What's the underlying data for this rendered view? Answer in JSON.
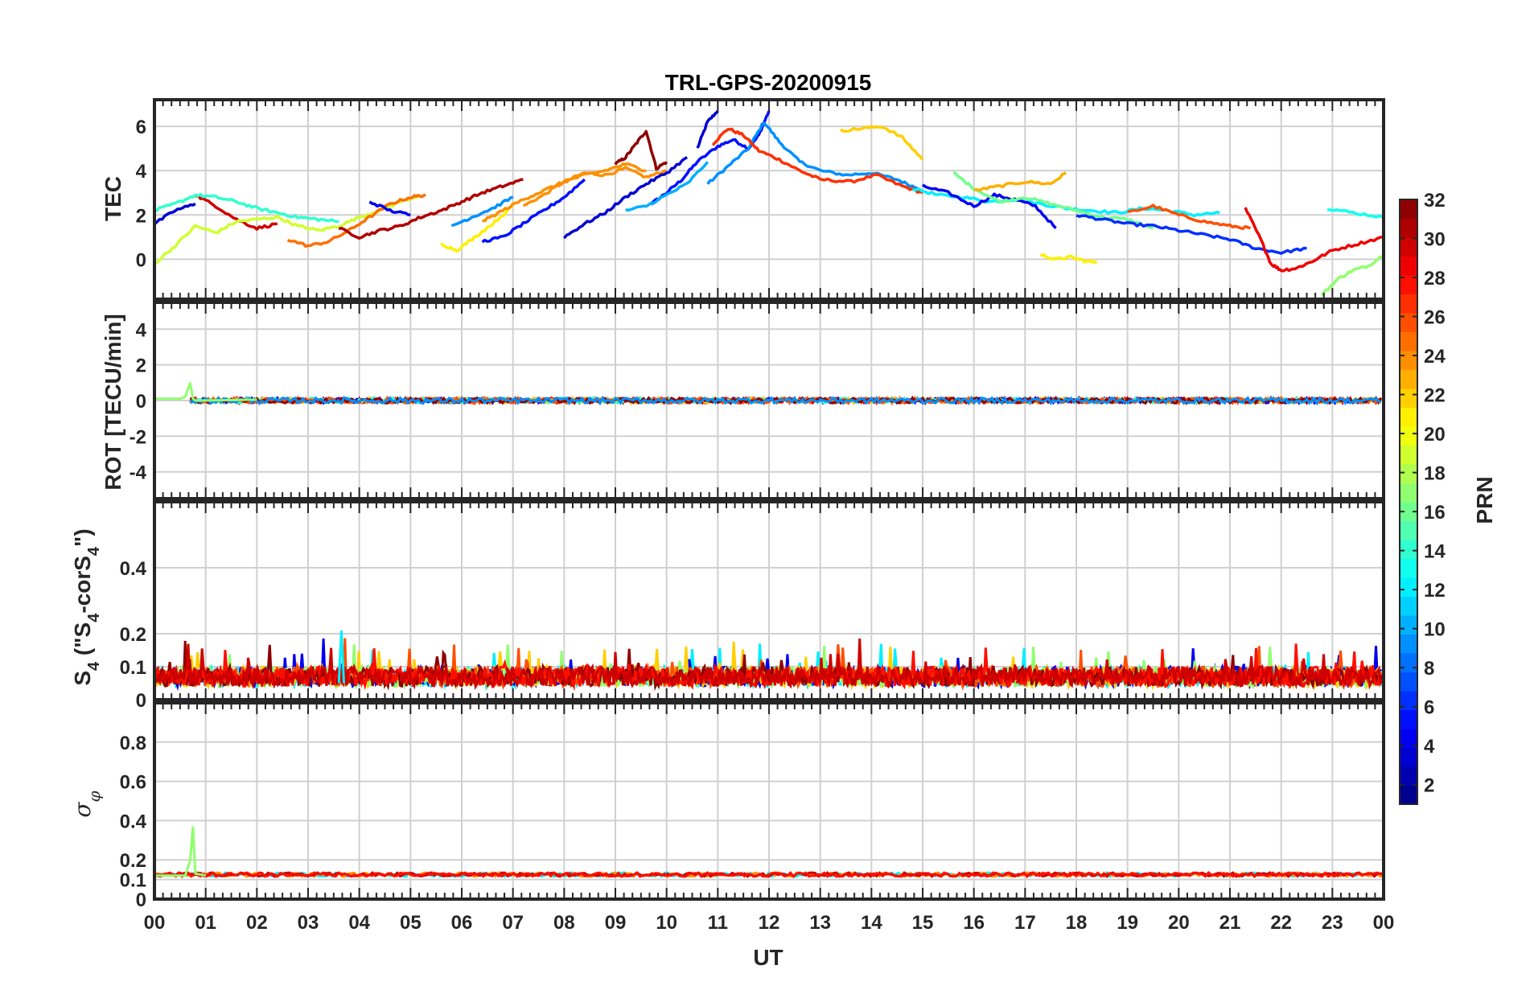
{
  "chart_data": [
    {
      "type": "line",
      "panel": "tec",
      "title": "TRL-GPS-20200915",
      "ylabel": "TEC",
      "xlim": [
        0,
        24
      ],
      "ylim": [
        -1.8,
        7.2
      ],
      "yticks": [
        0,
        2,
        4,
        6
      ],
      "series": [
        {
          "prn": 3,
          "x": [
            10.6,
            10.8,
            11.0
          ],
          "y": [
            5.0,
            6.2,
            6.7
          ]
        },
        {
          "prn": 5,
          "x": [
            9.7,
            10.0,
            10.3,
            10.6,
            11.0,
            11.3,
            11.6,
            11.8,
            12.0
          ],
          "y": [
            2.5,
            3.0,
            3.6,
            4.4,
            5.1,
            5.4,
            5.0,
            5.6,
            6.7
          ]
        },
        {
          "prn": 9,
          "x": [
            10.8,
            11.2,
            11.6,
            11.9,
            12.2,
            12.6,
            13.0,
            13.5,
            14.0,
            14.5,
            14.9
          ],
          "y": [
            3.4,
            4.2,
            5.0,
            6.2,
            5.3,
            4.4,
            4.0,
            3.8,
            3.9,
            3.6,
            3.2
          ]
        },
        {
          "prn": 27,
          "x": [
            10.9,
            11.2,
            11.5,
            11.8,
            12.2,
            12.6,
            13.0,
            13.6,
            14.1,
            14.6,
            15.0
          ],
          "y": [
            5.2,
            5.9,
            5.6,
            4.9,
            4.5,
            4.0,
            3.6,
            3.5,
            3.8,
            3.3,
            3.0
          ]
        },
        {
          "prn": 32,
          "x": [
            9.0,
            9.2,
            9.4,
            9.6,
            9.8,
            10.0
          ],
          "y": [
            4.3,
            4.6,
            5.2,
            5.8,
            4.1,
            4.4
          ]
        },
        {
          "prn": 24,
          "x": [
            7.2,
            7.6,
            8.0,
            8.4,
            8.8,
            9.2,
            9.6,
            10.0
          ],
          "y": [
            2.4,
            2.9,
            3.5,
            3.9,
            3.8,
            4.1,
            3.7,
            4.0
          ]
        },
        {
          "prn": 12,
          "x": [
            14.8,
            15.3,
            15.8,
            16.3,
            16.8,
            17.3,
            17.8,
            18.3,
            18.8,
            19.3,
            19.8,
            20.3,
            20.8
          ],
          "y": [
            3.2,
            2.9,
            2.8,
            2.6,
            2.7,
            2.5,
            2.3,
            2.2,
            2.1,
            2.3,
            2.2,
            2.0,
            2.1
          ]
        },
        {
          "prn": 4,
          "x": [
            15.0,
            15.5,
            16.0,
            16.4,
            16.8,
            17.2,
            17.6
          ],
          "y": [
            3.3,
            3.0,
            2.4,
            2.9,
            2.7,
            2.4,
            1.4
          ]
        },
        {
          "prn": 16,
          "x": [
            15.6,
            16.0,
            16.5,
            17.0,
            17.5,
            18.0,
            18.5,
            19.0,
            19.5
          ],
          "y": [
            3.9,
            3.2,
            2.6,
            2.8,
            2.5,
            2.2,
            1.9,
            1.8,
            1.4
          ]
        },
        {
          "prn": 23,
          "x": [
            16.0,
            16.5,
            17.0,
            17.5,
            17.8
          ],
          "y": [
            3.1,
            3.3,
            3.5,
            3.4,
            3.9
          ]
        },
        {
          "prn": 6,
          "x": [
            18.0,
            18.5,
            19.0,
            19.5,
            20.0,
            20.5,
            21.0,
            21.5,
            22.0,
            22.5
          ],
          "y": [
            2.0,
            1.8,
            1.6,
            1.5,
            1.3,
            1.1,
            0.9,
            0.5,
            0.3,
            0.5
          ]
        },
        {
          "prn": 26,
          "x": [
            19.0,
            19.5,
            20.0,
            20.5,
            21.0,
            21.4
          ],
          "y": [
            2.1,
            2.4,
            2.0,
            1.7,
            1.5,
            1.4
          ]
        },
        {
          "prn": 29,
          "x": [
            21.3,
            21.6,
            21.8,
            22.0,
            22.3,
            22.6,
            23.0,
            23.5,
            24.0
          ],
          "y": [
            2.3,
            0.9,
            -0.2,
            -0.5,
            -0.4,
            -0.1,
            0.4,
            0.7,
            1.0
          ]
        },
        {
          "prn": 17,
          "x": [
            22.8,
            23.1,
            23.4,
            23.7,
            24.0
          ],
          "y": [
            -1.6,
            -0.9,
            -0.5,
            -0.3,
            0.2
          ]
        },
        {
          "prn": 13,
          "x": [
            22.9,
            23.4,
            24.0
          ],
          "y": [
            2.3,
            2.1,
            1.9
          ]
        },
        {
          "prn": 22,
          "x": [
            13.4,
            13.8,
            14.2,
            14.6,
            15.0
          ],
          "y": [
            5.8,
            5.9,
            6.0,
            5.5,
            4.5
          ]
        },
        {
          "prn": 21,
          "x": [
            17.3,
            17.6,
            17.9,
            18.2,
            18.4
          ],
          "y": [
            0.2,
            0.0,
            0.1,
            -0.1,
            -0.1
          ]
        },
        {
          "prn": 30,
          "x": [
            0.8,
            1.2,
            1.6,
            2.0,
            2.4
          ],
          "y": [
            2.9,
            2.4,
            1.8,
            1.4,
            1.6
          ]
        },
        {
          "prn": 14,
          "x": [
            0.0,
            0.4,
            0.8,
            1.2,
            1.6,
            2.0,
            2.4,
            2.8,
            3.2,
            3.6
          ],
          "y": [
            2.2,
            2.5,
            2.9,
            2.8,
            2.6,
            2.3,
            2.1,
            1.9,
            1.8,
            1.7
          ]
        },
        {
          "prn": 19,
          "x": [
            0.0,
            0.4,
            0.8,
            1.2,
            1.6,
            2.0,
            2.4,
            2.8,
            3.2,
            3.6,
            4.0,
            4.4,
            4.8,
            5.2
          ],
          "y": [
            -0.2,
            0.6,
            1.5,
            1.2,
            1.7,
            1.8,
            1.9,
            1.5,
            1.3,
            1.5,
            1.9,
            2.2,
            2.6,
            2.9
          ]
        },
        {
          "prn": 3,
          "x": [
            0.0,
            0.4,
            0.8
          ],
          "y": [
            1.6,
            2.2,
            2.5
          ]
        },
        {
          "prn": 25,
          "x": [
            2.6,
            3.0,
            3.4,
            3.8,
            4.2,
            4.6,
            5.0,
            5.3
          ],
          "y": [
            0.9,
            0.6,
            0.8,
            1.3,
            1.9,
            2.5,
            2.8,
            2.9
          ]
        },
        {
          "prn": 31,
          "x": [
            3.6,
            4.0,
            4.4,
            4.8,
            5.2,
            5.6,
            6.0,
            6.4,
            6.8,
            7.2
          ],
          "y": [
            1.4,
            1.0,
            1.3,
            1.5,
            1.9,
            2.2,
            2.6,
            3.0,
            3.3,
            3.6
          ]
        },
        {
          "prn": 4,
          "x": [
            4.2,
            4.6,
            5.0
          ],
          "y": [
            2.6,
            2.2,
            2.0
          ]
        },
        {
          "prn": 21,
          "x": [
            5.6,
            5.9,
            6.2,
            6.6,
            7.0
          ],
          "y": [
            0.7,
            0.4,
            0.9,
            1.6,
            2.4
          ]
        },
        {
          "prn": 9,
          "x": [
            5.8,
            6.2,
            6.6,
            7.0
          ],
          "y": [
            1.5,
            1.9,
            2.3,
            2.8
          ]
        },
        {
          "prn": 5,
          "x": [
            6.4,
            6.8,
            7.2,
            7.6,
            8.0,
            8.4
          ],
          "y": [
            0.8,
            1.0,
            1.6,
            2.2,
            2.8,
            3.6
          ]
        },
        {
          "prn": 3,
          "x": [
            8.0,
            8.4,
            8.8,
            9.2,
            9.6,
            10.0,
            10.4
          ],
          "y": [
            1.0,
            1.6,
            2.1,
            2.8,
            3.4,
            3.9,
            4.6
          ]
        },
        {
          "prn": 10,
          "x": [
            9.2,
            9.6,
            10.0,
            10.4,
            10.8
          ],
          "y": [
            2.2,
            2.4,
            2.9,
            3.4,
            4.4
          ]
        },
        {
          "prn": 24,
          "x": [
            6.4,
            6.8,
            7.2,
            7.6,
            8.0,
            8.4,
            8.8,
            9.2,
            9.6
          ],
          "y": [
            1.7,
            2.2,
            2.7,
            3.1,
            3.5,
            3.8,
            4.0,
            4.3,
            4.0
          ]
        }
      ]
    },
    {
      "type": "line",
      "panel": "rot",
      "ylabel": "ROT [TECU/min]",
      "xlim": [
        0,
        24
      ],
      "ylim": [
        -5.5,
        5.5
      ],
      "yticks": [
        -4,
        -2,
        0,
        2,
        4
      ],
      "series": [
        {
          "prn": 17,
          "x": [
            0.0,
            0.5,
            0.6,
            0.7,
            0.75,
            0.8,
            1.0,
            2.0
          ],
          "y": [
            0.1,
            0.1,
            0.2,
            1.0,
            0.1,
            0.0,
            0.0,
            0.05
          ]
        },
        {
          "prn": 30,
          "x": [
            0.7,
            2.0,
            4.0,
            6.0,
            8.0,
            10.0,
            12.0,
            14.0,
            16.0,
            18.0,
            20.0,
            22.0,
            24.0
          ],
          "y": [
            0.0,
            0.05,
            0.0,
            0.05,
            0.1,
            0.1,
            -0.1,
            0.0,
            0.05,
            0.0,
            0.0,
            0.05,
            0.05
          ]
        },
        {
          "prn": 5,
          "x": [
            8.0,
            9.0,
            10.0,
            11.0,
            12.0,
            13.0
          ],
          "y": [
            0.0,
            0.1,
            0.15,
            0.2,
            -0.2,
            0.0
          ]
        }
      ]
    },
    {
      "type": "line",
      "panel": "s4",
      "ylabel": "S4 (\"S4-corS4\")",
      "xlim": [
        0,
        24
      ],
      "ylim": [
        0,
        0.6
      ],
      "yticks": [
        0,
        0.1,
        0.2,
        0.4
      ],
      "ytick_labels": [
        "0",
        "0.1",
        "0.2",
        "0.4"
      ],
      "series": [
        {
          "prn": 28,
          "summary": "noise 0.01-0.19 across 00-24 UT",
          "x": [
            0,
            4,
            8,
            12,
            16,
            20,
            24
          ],
          "y": [
            0.05,
            0.06,
            0.07,
            0.05,
            0.06,
            0.05,
            0.06
          ]
        },
        {
          "prn": 12,
          "summary": "peak 0.21 near 03:40 UT",
          "x": [
            3.6,
            3.65,
            3.7
          ],
          "y": [
            0.05,
            0.21,
            0.05
          ]
        }
      ]
    },
    {
      "type": "line",
      "panel": "sigma",
      "ylabel": "σ φ",
      "xlim": [
        0,
        24
      ],
      "ylim": [
        0,
        1
      ],
      "yticks": [
        0,
        0.1,
        0.2,
        0.4,
        0.6,
        0.8
      ],
      "ytick_labels": [
        "0",
        "0.1",
        "0.2",
        "0.4",
        "0.6",
        "0.8"
      ],
      "series": [
        {
          "prn": 17,
          "x": [
            0.0,
            0.6,
            0.7,
            0.75,
            0.8,
            1.0
          ],
          "y": [
            0.12,
            0.12,
            0.2,
            0.37,
            0.13,
            0.12
          ]
        },
        {
          "prn": 29,
          "x": [
            0.7,
            4.0,
            8.0,
            12.0,
            16.0,
            20.0,
            24.0
          ],
          "y": [
            0.12,
            0.12,
            0.12,
            0.12,
            0.12,
            0.12,
            0.12
          ]
        }
      ]
    }
  ],
  "xaxis": {
    "label": "UT",
    "ticks": [
      "00",
      "01",
      "02",
      "03",
      "04",
      "05",
      "06",
      "07",
      "08",
      "09",
      "10",
      "11",
      "12",
      "13",
      "14",
      "15",
      "16",
      "17",
      "18",
      "19",
      "20",
      "21",
      "22",
      "23",
      "00"
    ]
  },
  "colorbar": {
    "label": "PRN",
    "range": [
      1,
      32
    ],
    "ticks": [
      "2",
      "4",
      "6",
      "8",
      "10",
      "12",
      "14",
      "16",
      "18",
      "20",
      "22",
      "24",
      "26",
      "28",
      "30",
      "32"
    ],
    "colors": [
      "#00008f",
      "#0000b0",
      "#0000d0",
      "#0000f0",
      "#0010ff",
      "#0030ff",
      "#0050ff",
      "#0070ff",
      "#0090ff",
      "#00b0ff",
      "#00d0ff",
      "#00f0ff",
      "#10ffef",
      "#30ffcf",
      "#50ffaf",
      "#70ff8f",
      "#90ff6f",
      "#b0ff4f",
      "#d0ff2f",
      "#f0ff0f",
      "#ffef00",
      "#ffcf00",
      "#ffaf00",
      "#ff8f00",
      "#ff6f00",
      "#ff4f00",
      "#ff2f00",
      "#ff0f00",
      "#ef0000",
      "#cf0000",
      "#af0000",
      "#8f0000"
    ]
  }
}
